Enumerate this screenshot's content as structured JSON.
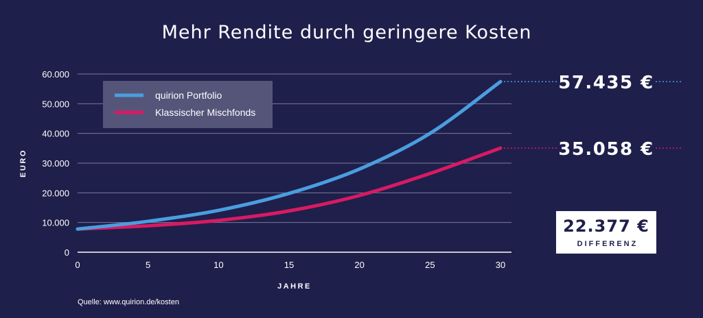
{
  "chart_data": {
    "type": "line",
    "title": "Mehr Rendite durch geringere Kosten",
    "xlabel": "JAHRE",
    "ylabel": "EURO",
    "xlim": [
      0,
      30
    ],
    "ylim": [
      0,
      60000
    ],
    "x_ticks": [
      0,
      5,
      10,
      15,
      20,
      25,
      30
    ],
    "x_tick_labels": [
      "0",
      "5",
      "10",
      "15",
      "20",
      "25",
      "30"
    ],
    "y_ticks": [
      0,
      10000,
      20000,
      30000,
      40000,
      50000,
      60000
    ],
    "y_tick_labels": [
      "0",
      "10.000",
      "20.000",
      "30.000",
      "40.000",
      "50.000",
      "60.000"
    ],
    "grid": "horizontal",
    "legend_position": "top-left",
    "x": [
      0,
      5,
      10,
      15,
      20,
      25,
      30
    ],
    "series": [
      {
        "name": "quirion Portfolio",
        "color": "#4a9edf",
        "values": [
          7800,
          10400,
          14100,
          19800,
          28000,
          40000,
          57435
        ]
      },
      {
        "name": "Klassischer Mischfonds",
        "color": "#d81a63",
        "values": [
          7800,
          8900,
          10700,
          13900,
          19100,
          26500,
          35058
        ]
      }
    ],
    "annotations": {
      "end_value_1": "57.435 €",
      "end_value_2": "35.058 €",
      "difference_value": "22.377 €",
      "difference_label": "DIFFERENZ"
    }
  },
  "source": "Quelle: www.quirion.de/kosten"
}
